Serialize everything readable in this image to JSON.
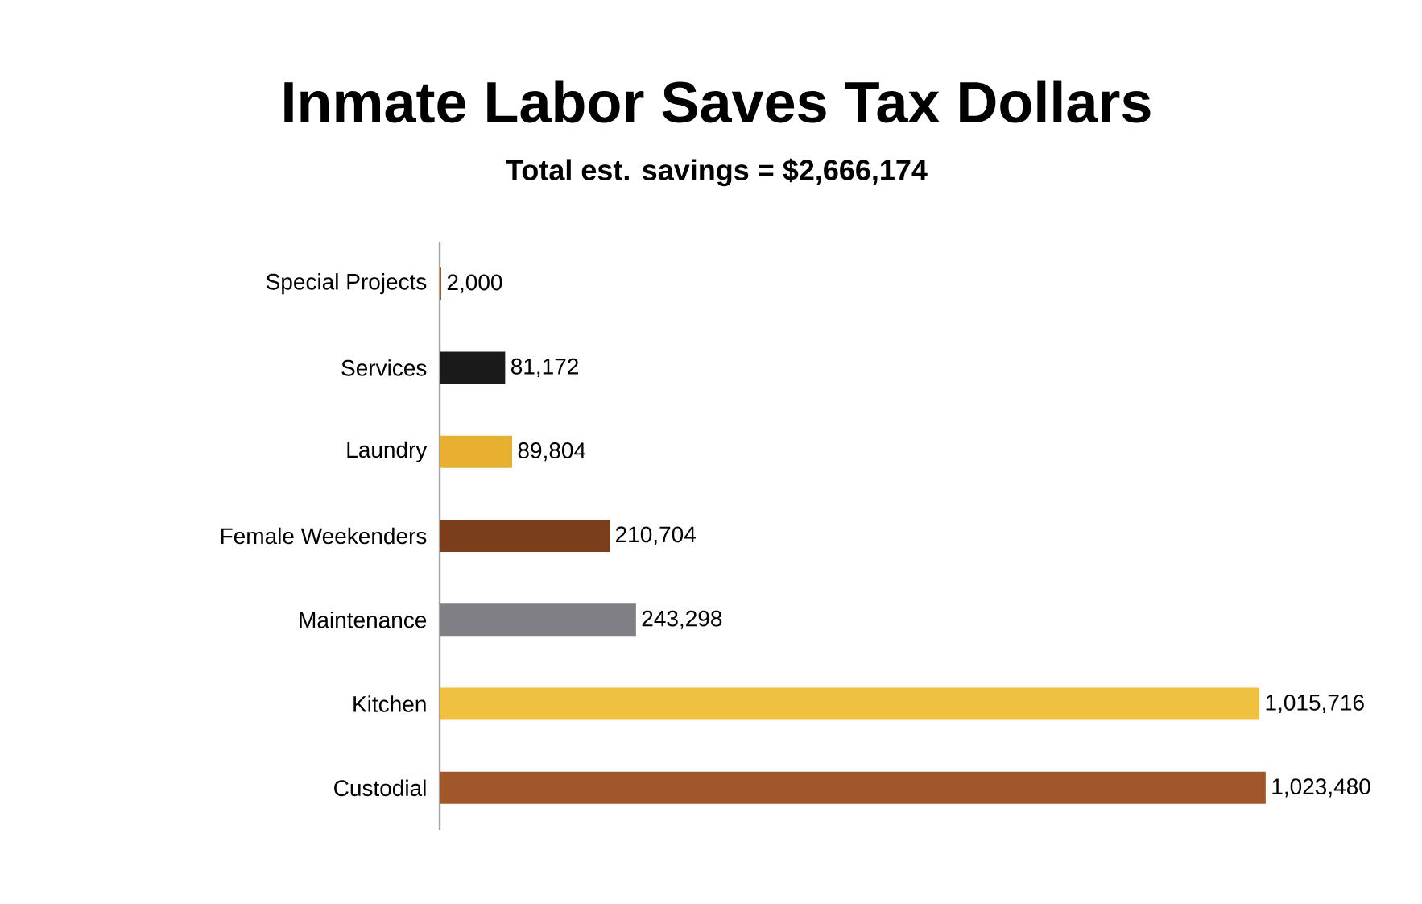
{
  "chart_data": {
    "type": "bar",
    "orientation": "horizontal",
    "title": "Inmate Labor Saves Tax Dollars",
    "subtitle": "Total est. savings = $2,666,174",
    "categories": [
      "Special Projects",
      "Services",
      "Laundry",
      "Female Weekenders",
      "Maintenance",
      "Kitchen",
      "Custodial"
    ],
    "values": [
      2000,
      81172,
      89804,
      210704,
      243298,
      1015716,
      1023480
    ],
    "value_labels": [
      "2,000",
      "81,172",
      "89,804",
      "210,704",
      "243,298",
      "1,015,716",
      "1,023,480"
    ],
    "colors": [
      "#a0582a",
      "#1a1a1a",
      "#e8b030",
      "#7a3f1a",
      "#7f7f85",
      "#f0c040",
      "#a0582a"
    ],
    "tick_labels": "y"
  }
}
